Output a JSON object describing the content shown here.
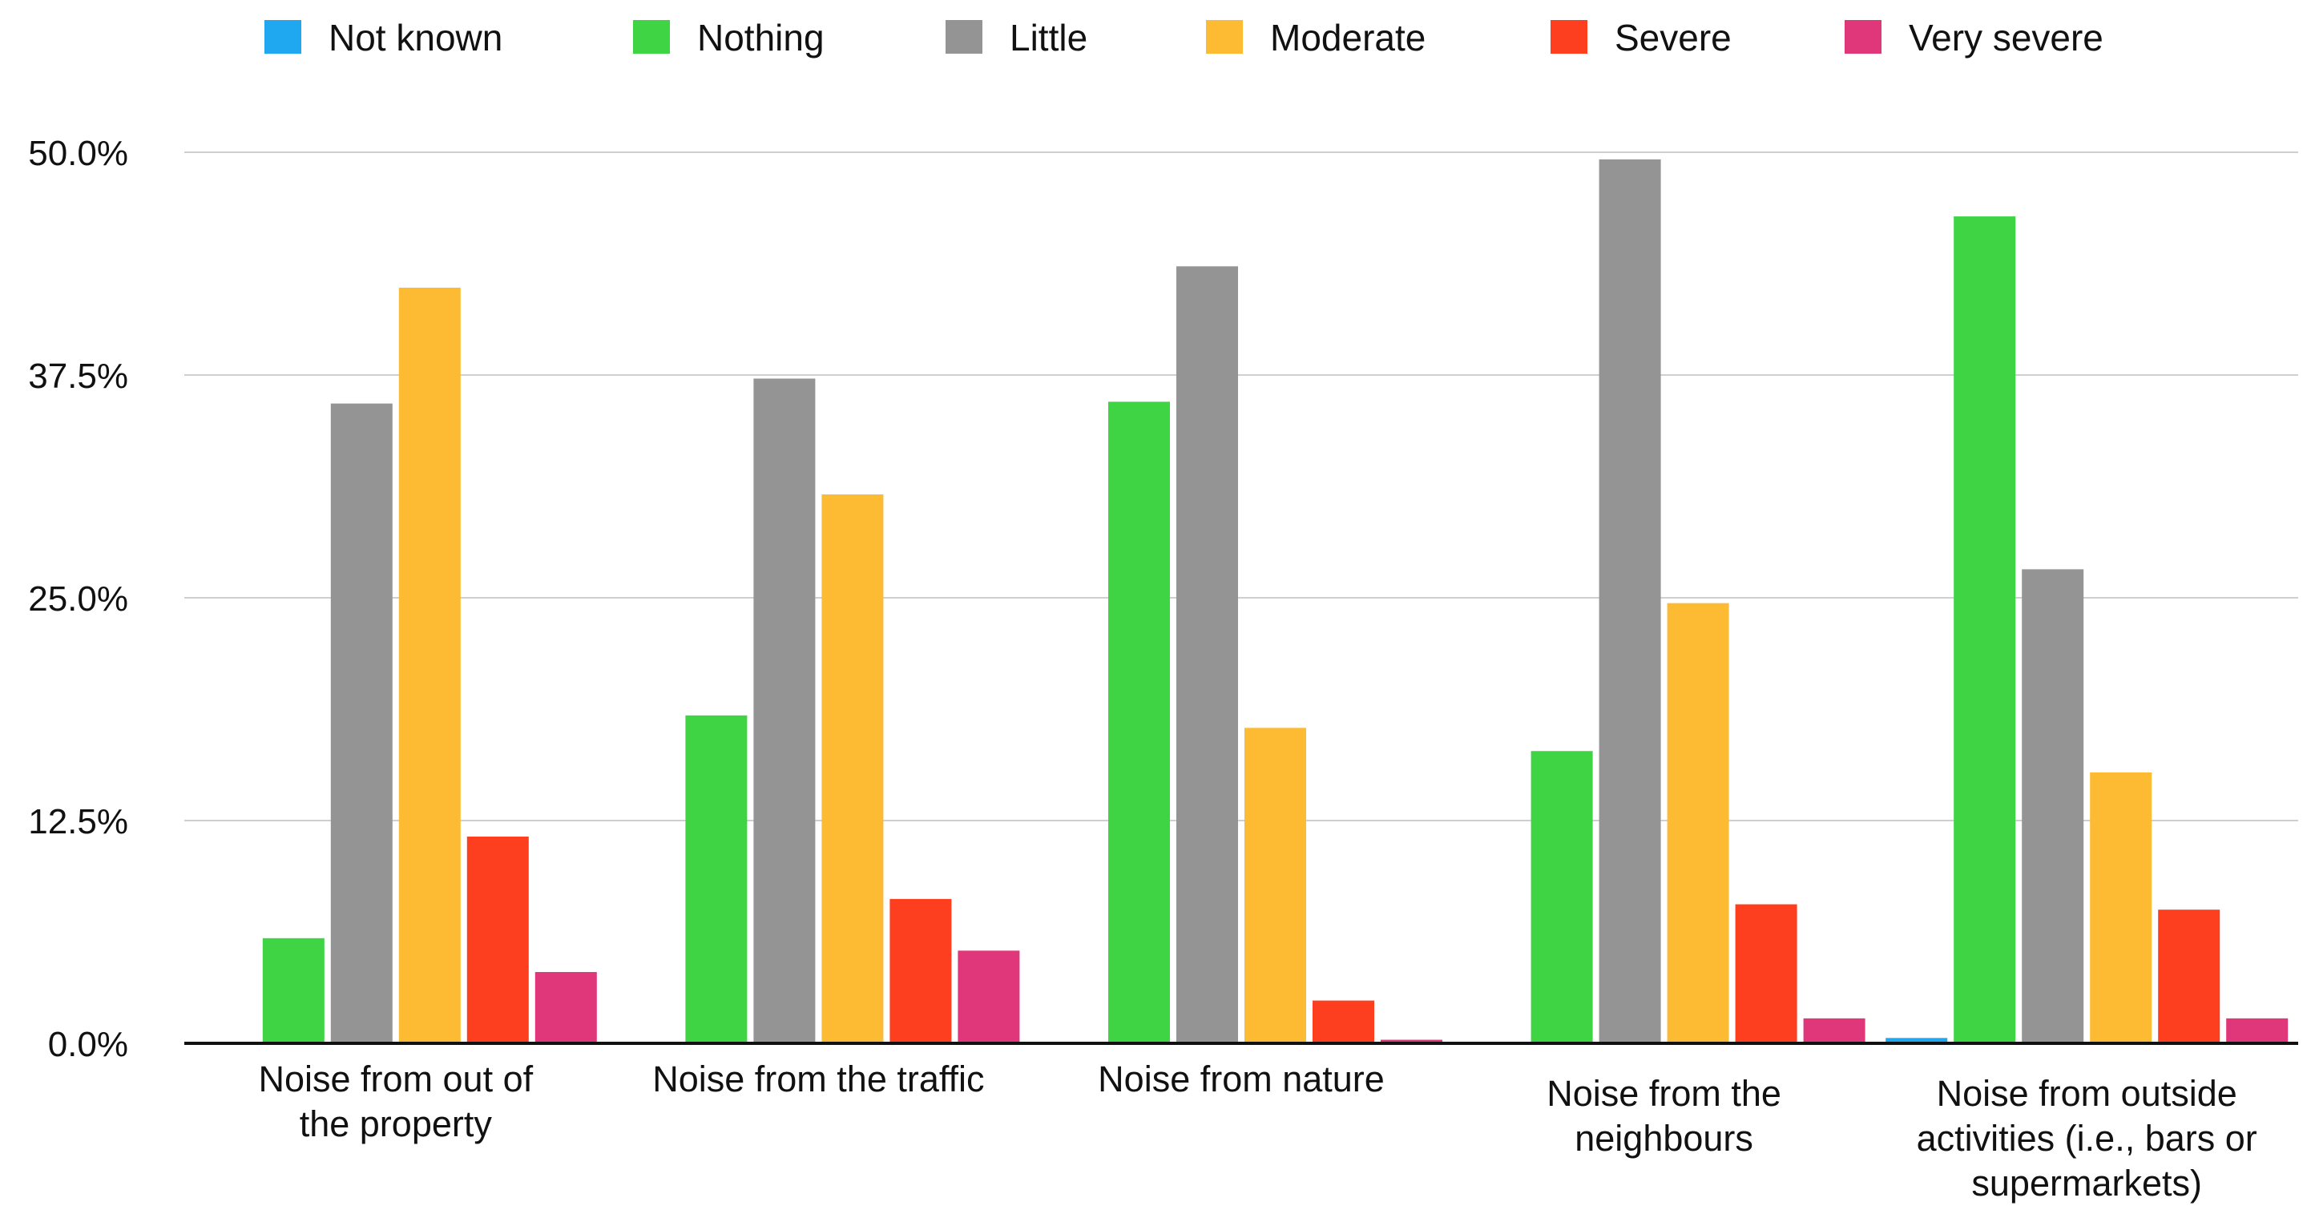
{
  "chart_data": {
    "type": "bar",
    "title": "",
    "xlabel": "",
    "ylabel": "",
    "ylim": [
      0,
      50
    ],
    "grid": true,
    "legend_position": "top",
    "y_ticks": [
      0,
      12.5,
      25,
      37.5,
      50
    ],
    "y_tick_labels": [
      "0.0%",
      "12.5%",
      "25.0%",
      "37.5%",
      "50.0%"
    ],
    "categories": [
      [
        "Noise from out of",
        "the property"
      ],
      [
        "Noise from the traffic"
      ],
      [
        "Noise from nature"
      ],
      [
        "Noise from the",
        "neighbours"
      ],
      [
        "Noise from outside",
        "activities (i.e., bars or",
        "supermarkets)"
      ]
    ],
    "series": [
      {
        "name": "Not known",
        "color": "#1fa7f0",
        "values": [
          0,
          0,
          0,
          0,
          0.3
        ]
      },
      {
        "name": "Nothing",
        "color": "#3ed444",
        "values": [
          5.9,
          18.4,
          36.0,
          16.4,
          46.4
        ]
      },
      {
        "name": "Little",
        "color": "#949494",
        "values": [
          35.9,
          37.3,
          43.6,
          49.6,
          26.6
        ]
      },
      {
        "name": "Moderate",
        "color": "#fdba33",
        "values": [
          42.4,
          30.8,
          17.7,
          24.7,
          15.2
        ]
      },
      {
        "name": "Severe",
        "color": "#fe3f1f",
        "values": [
          11.6,
          8.1,
          2.4,
          7.8,
          7.5
        ]
      },
      {
        "name": "Very severe",
        "color": "#e0367a",
        "values": [
          4.0,
          5.2,
          0.2,
          1.4,
          1.4
        ]
      }
    ]
  }
}
